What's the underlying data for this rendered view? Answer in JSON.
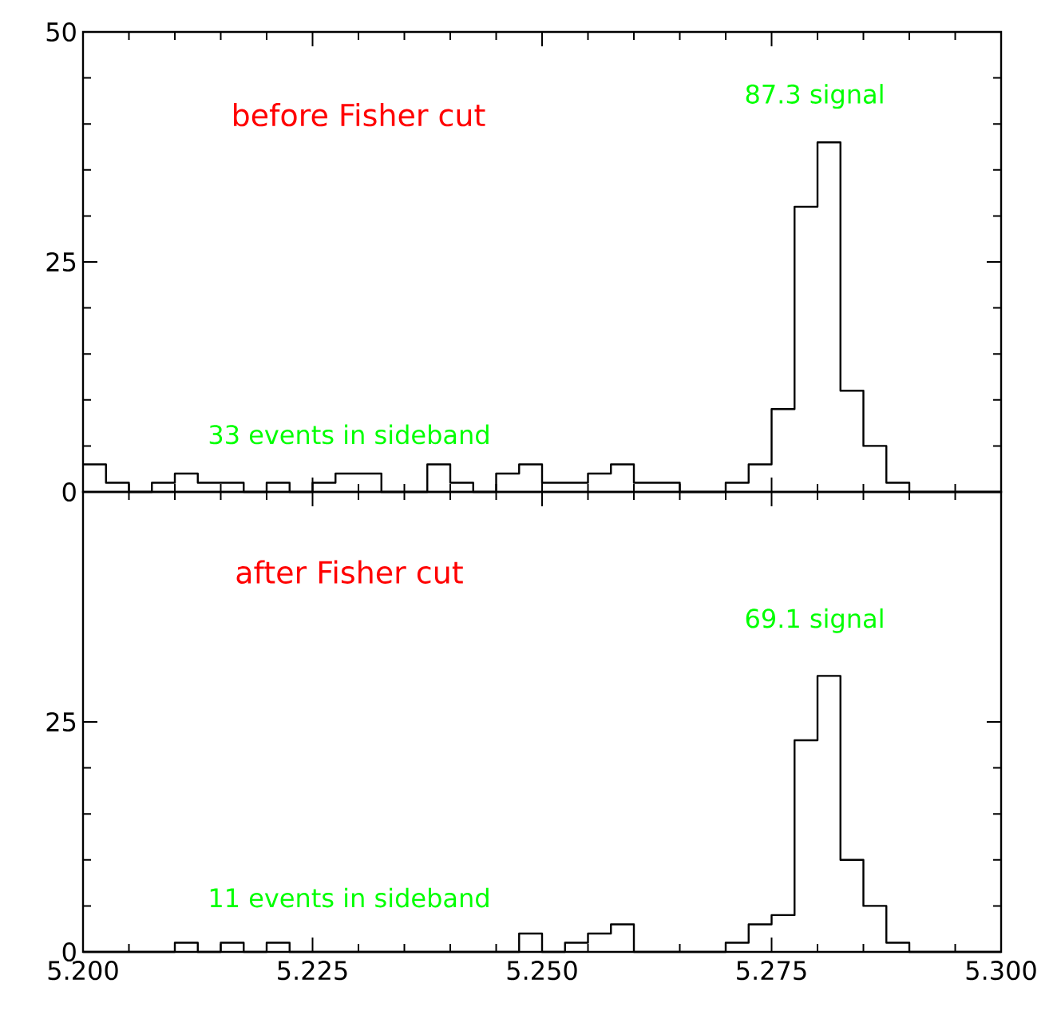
{
  "chart_data": [
    {
      "type": "histogram",
      "color": "#000000",
      "bins": [
        5.2,
        5.2025,
        5.205,
        5.2075,
        5.21,
        5.2125,
        5.215,
        5.2175,
        5.22,
        5.2225,
        5.225,
        5.2275,
        5.23,
        5.2325,
        5.235,
        5.2375,
        5.24,
        5.2425,
        5.245,
        5.2475,
        5.25,
        5.2525,
        5.255,
        5.2575,
        5.26,
        5.2625,
        5.265,
        5.2675,
        5.27,
        5.2725,
        5.275,
        5.2775,
        5.28,
        5.2825,
        5.285,
        5.2875,
        5.29,
        5.2925,
        5.295,
        5.2975,
        5.3
      ],
      "values": [
        3,
        1,
        0,
        1,
        2,
        1,
        1,
        0,
        1,
        0,
        1,
        2,
        2,
        0,
        0,
        3,
        1,
        0,
        2,
        3,
        1,
        1,
        2,
        3,
        1,
        1,
        0,
        0,
        1,
        3,
        9,
        31,
        38,
        11,
        5,
        1,
        0,
        0,
        0,
        0
      ],
      "xlim": [
        5.2,
        5.3
      ],
      "ylim": [
        0,
        50
      ],
      "yticks": [
        0,
        25,
        50
      ],
      "xticks": [
        {
          "value": 5.2,
          "label": null
        },
        {
          "value": 5.225,
          "label": null
        },
        {
          "value": 5.25,
          "label": null
        },
        {
          "value": 5.275,
          "label": null
        },
        {
          "value": 5.3,
          "label": null
        }
      ],
      "tick_labels": "y",
      "annotations": [
        "before Fisher cut",
        "87.3 signal",
        "33 events in sideband"
      ]
    },
    {
      "type": "histogram",
      "color": "#000000",
      "bins": [
        5.2,
        5.2025,
        5.205,
        5.2075,
        5.21,
        5.2125,
        5.215,
        5.2175,
        5.22,
        5.2225,
        5.225,
        5.2275,
        5.23,
        5.2325,
        5.235,
        5.2375,
        5.24,
        5.2425,
        5.245,
        5.2475,
        5.25,
        5.2525,
        5.255,
        5.2575,
        5.26,
        5.2625,
        5.265,
        5.2675,
        5.27,
        5.2725,
        5.275,
        5.2775,
        5.28,
        5.2825,
        5.285,
        5.2875,
        5.29,
        5.2925,
        5.295,
        5.2975,
        5.3
      ],
      "values": [
        0,
        0,
        0,
        0,
        1,
        0,
        1,
        0,
        1,
        0,
        0,
        0,
        0,
        0,
        0,
        0,
        0,
        0,
        0,
        2,
        0,
        1,
        2,
        3,
        0,
        0,
        0,
        0,
        1,
        3,
        4,
        23,
        30,
        10,
        5,
        1,
        0,
        0,
        0,
        0
      ],
      "xlim": [
        5.2,
        5.3
      ],
      "ylim": [
        0,
        50
      ],
      "yticks": [
        0,
        25
      ],
      "xticks": [
        {
          "value": 5.2,
          "label": "5.200"
        },
        {
          "value": 5.225,
          "label": "5.225"
        },
        {
          "value": 5.25,
          "label": "5.250"
        },
        {
          "value": 5.275,
          "label": "5.275"
        },
        {
          "value": 5.3,
          "label": "5.300"
        }
      ],
      "annotations": [
        "after Fisher cut",
        "69.1 signal",
        "11 events in sideband"
      ]
    }
  ]
}
